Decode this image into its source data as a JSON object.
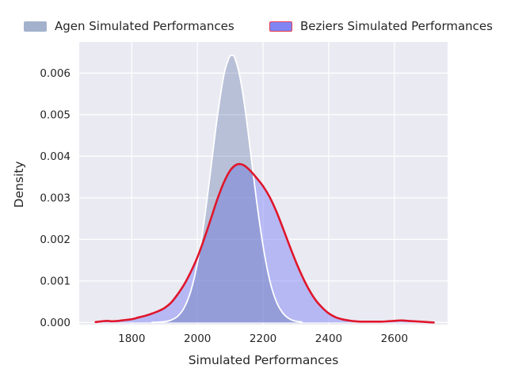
{
  "colors": {
    "figure_background": "#ffffff",
    "axes_background": "#eaeaf2",
    "grid": "#ffffff",
    "text": "#262626",
    "agen_fill": "rgba(68,97,153,0.30)",
    "agen_line": "#ffffff",
    "agen_legend_patch": "#a3b1cd",
    "beziers_fill": "rgba(130,134,245,0.50)",
    "beziers_line": "#e0162b",
    "beziers_legend_patch": "#8185f2",
    "beziers_legend_border": "#ea3b50"
  },
  "chart_data": {
    "type": "area",
    "subtype": "kde-density",
    "title": "",
    "xlabel": "Simulated Performances",
    "ylabel": "Density",
    "xlim": [
      1640,
      2762
    ],
    "ylim": [
      -5e-05,
      0.00675
    ],
    "grid": true,
    "legend_position": "top",
    "xticks": [
      1800,
      2000,
      2200,
      2400,
      2600
    ],
    "xtick_labels": [
      "1800",
      "2000",
      "2200",
      "2400",
      "2600"
    ],
    "yticks": [
      0.0,
      0.001,
      0.002,
      0.003,
      0.004,
      0.005,
      0.006
    ],
    "ytick_labels": [
      "0.000",
      "0.001",
      "0.002",
      "0.003",
      "0.004",
      "0.005",
      "0.006"
    ],
    "series": [
      {
        "name": "Agen Simulated Performances",
        "peak": {
          "x": 2105,
          "density": 0.00643
        },
        "points": [
          [
            1860,
            3e-06
          ],
          [
            1880,
            1e-05
          ],
          [
            1900,
            2e-05
          ],
          [
            1920,
            6e-05
          ],
          [
            1940,
            0.00015
          ],
          [
            1960,
            0.00036
          ],
          [
            1980,
            0.00076
          ],
          [
            2000,
            0.00143
          ],
          [
            2020,
            0.00241
          ],
          [
            2040,
            0.00364
          ],
          [
            2060,
            0.00491
          ],
          [
            2080,
            0.00593
          ],
          [
            2095,
            0.00634
          ],
          [
            2105,
            0.00643
          ],
          [
            2115,
            0.00634
          ],
          [
            2130,
            0.00589
          ],
          [
            2145,
            0.00515
          ],
          [
            2160,
            0.00422
          ],
          [
            2180,
            0.00294
          ],
          [
            2200,
            0.00184
          ],
          [
            2220,
            0.00102
          ],
          [
            2240,
            0.00051
          ],
          [
            2260,
            0.00023
          ],
          [
            2280,
            9e-05
          ],
          [
            2300,
            3e-05
          ],
          [
            2320,
            1e-05
          ]
        ]
      },
      {
        "name": "Beziers Simulated Performances",
        "peak": {
          "x": 2125,
          "density": 0.0038
        },
        "points": [
          [
            1690,
            1e-05
          ],
          [
            1710,
            3e-05
          ],
          [
            1725,
            4e-05
          ],
          [
            1740,
            3e-05
          ],
          [
            1760,
            4e-05
          ],
          [
            1780,
            6e-05
          ],
          [
            1800,
            8e-05
          ],
          [
            1820,
            0.00012
          ],
          [
            1840,
            0.00016
          ],
          [
            1860,
            0.00021
          ],
          [
            1880,
            0.00027
          ],
          [
            1900,
            0.00035
          ],
          [
            1920,
            0.00048
          ],
          [
            1940,
            0.00068
          ],
          [
            1960,
            0.00092
          ],
          [
            1980,
            0.00122
          ],
          [
            2000,
            0.00157
          ],
          [
            2020,
            0.002
          ],
          [
            2040,
            0.00247
          ],
          [
            2060,
            0.00295
          ],
          [
            2080,
            0.00336
          ],
          [
            2100,
            0.00366
          ],
          [
            2120,
            0.0038
          ],
          [
            2140,
            0.00379
          ],
          [
            2160,
            0.00366
          ],
          [
            2180,
            0.00348
          ],
          [
            2200,
            0.00328
          ],
          [
            2220,
            0.00302
          ],
          [
            2240,
            0.00268
          ],
          [
            2260,
            0.00228
          ],
          [
            2280,
            0.00186
          ],
          [
            2300,
            0.00146
          ],
          [
            2320,
            0.0011
          ],
          [
            2340,
            0.00079
          ],
          [
            2360,
            0.00054
          ],
          [
            2380,
            0.00036
          ],
          [
            2400,
            0.00022
          ],
          [
            2420,
            0.00013
          ],
          [
            2440,
            8e-05
          ],
          [
            2460,
            5e-05
          ],
          [
            2480,
            3e-05
          ],
          [
            2500,
            2e-05
          ],
          [
            2530,
            2e-05
          ],
          [
            2560,
            2e-05
          ],
          [
            2580,
            3e-05
          ],
          [
            2600,
            4e-05
          ],
          [
            2620,
            5e-05
          ],
          [
            2640,
            4e-05
          ],
          [
            2660,
            3e-05
          ],
          [
            2680,
            2e-05
          ],
          [
            2700,
            1e-05
          ],
          [
            2720,
            0.0
          ]
        ]
      }
    ]
  }
}
